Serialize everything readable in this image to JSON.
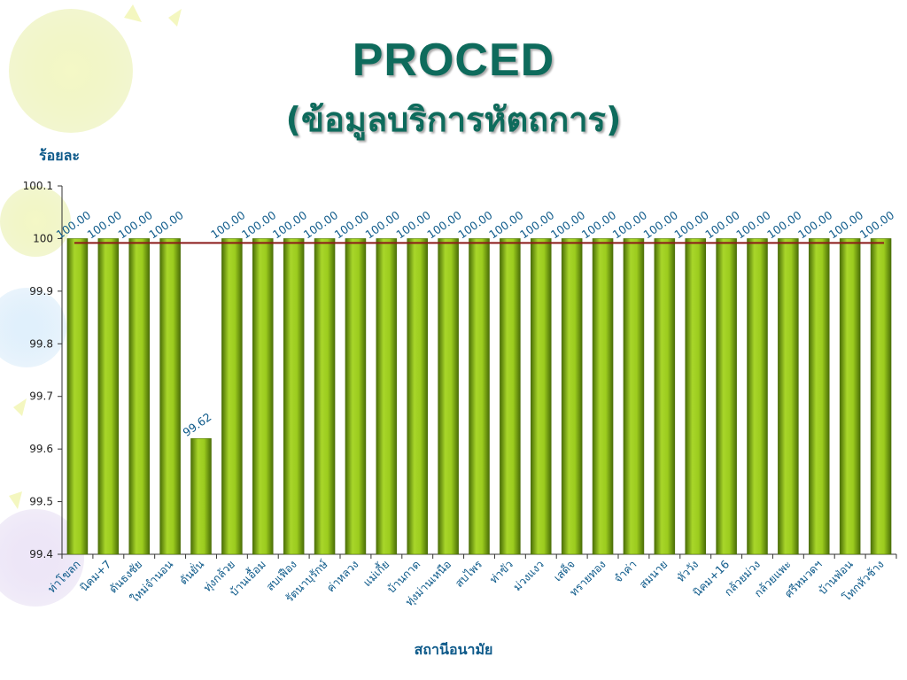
{
  "header": {
    "title": "PROCED",
    "subtitle": "(ข้อมูลบริการหัตถการ)"
  },
  "chart_data": {
    "type": "bar",
    "ylabel": "ร้อยละ",
    "xlabel": "สถานีอนามัย",
    "ylim": [
      99.4,
      100.1
    ],
    "yticks": [
      "99.4",
      "99.5",
      "99.6",
      "99.7",
      "99.8",
      "99.9",
      "100",
      "100.1"
    ],
    "reference_line": 100,
    "categories": [
      "ท่าโขลก",
      "นิคม+7",
      "ดันธงชัย",
      "ใหม่จำนอน",
      "ดันยั่น",
      "ทุ่งกล้วย",
      "บ้านเอื้อม",
      "สบเฟือง",
      "รัตนาบุรักษ์",
      "ค่าหลวง",
      "แม่เกี้ย",
      "บ้านกาด",
      "ทุ่งม่านเหนือ",
      "สบไพร",
      "ท่าขัว",
      "ม่วงแงว",
      "เสด็จ",
      "ทรายทอง",
      "จำค่า",
      "สมนาย",
      "หัววัง",
      "นิคม+16",
      "กล้วยม่วง",
      "กล้วยแพะ",
      "ศรีหมวดฯ",
      "บ้านฟ่อน",
      "โทกหัวช้าง"
    ],
    "values": [
      100,
      100,
      100,
      100,
      99.62,
      100,
      100,
      100,
      100,
      100,
      100,
      100,
      100,
      100,
      100,
      100,
      100,
      100,
      100,
      100,
      100,
      100,
      100,
      100,
      100,
      100,
      100
    ],
    "value_labels": [
      "100.00",
      "100.00",
      "100.00",
      "100.00",
      "99.62",
      "100.00",
      "100.00",
      "100.00",
      "100.00",
      "100.00",
      "100.00",
      "100.00",
      "100.00",
      "100.00",
      "100.00",
      "100.00",
      "100.00",
      "100.00",
      "100.00",
      "100.00",
      "100.00",
      "100.00",
      "100.00",
      "100.00",
      "100.00",
      "100.00",
      "100.00"
    ],
    "colors": {
      "bar": "#8cbf1a",
      "bar_dark": "#4a6e06",
      "reference_line": "#8b1a1a",
      "labels": "#0e5a8a"
    }
  }
}
